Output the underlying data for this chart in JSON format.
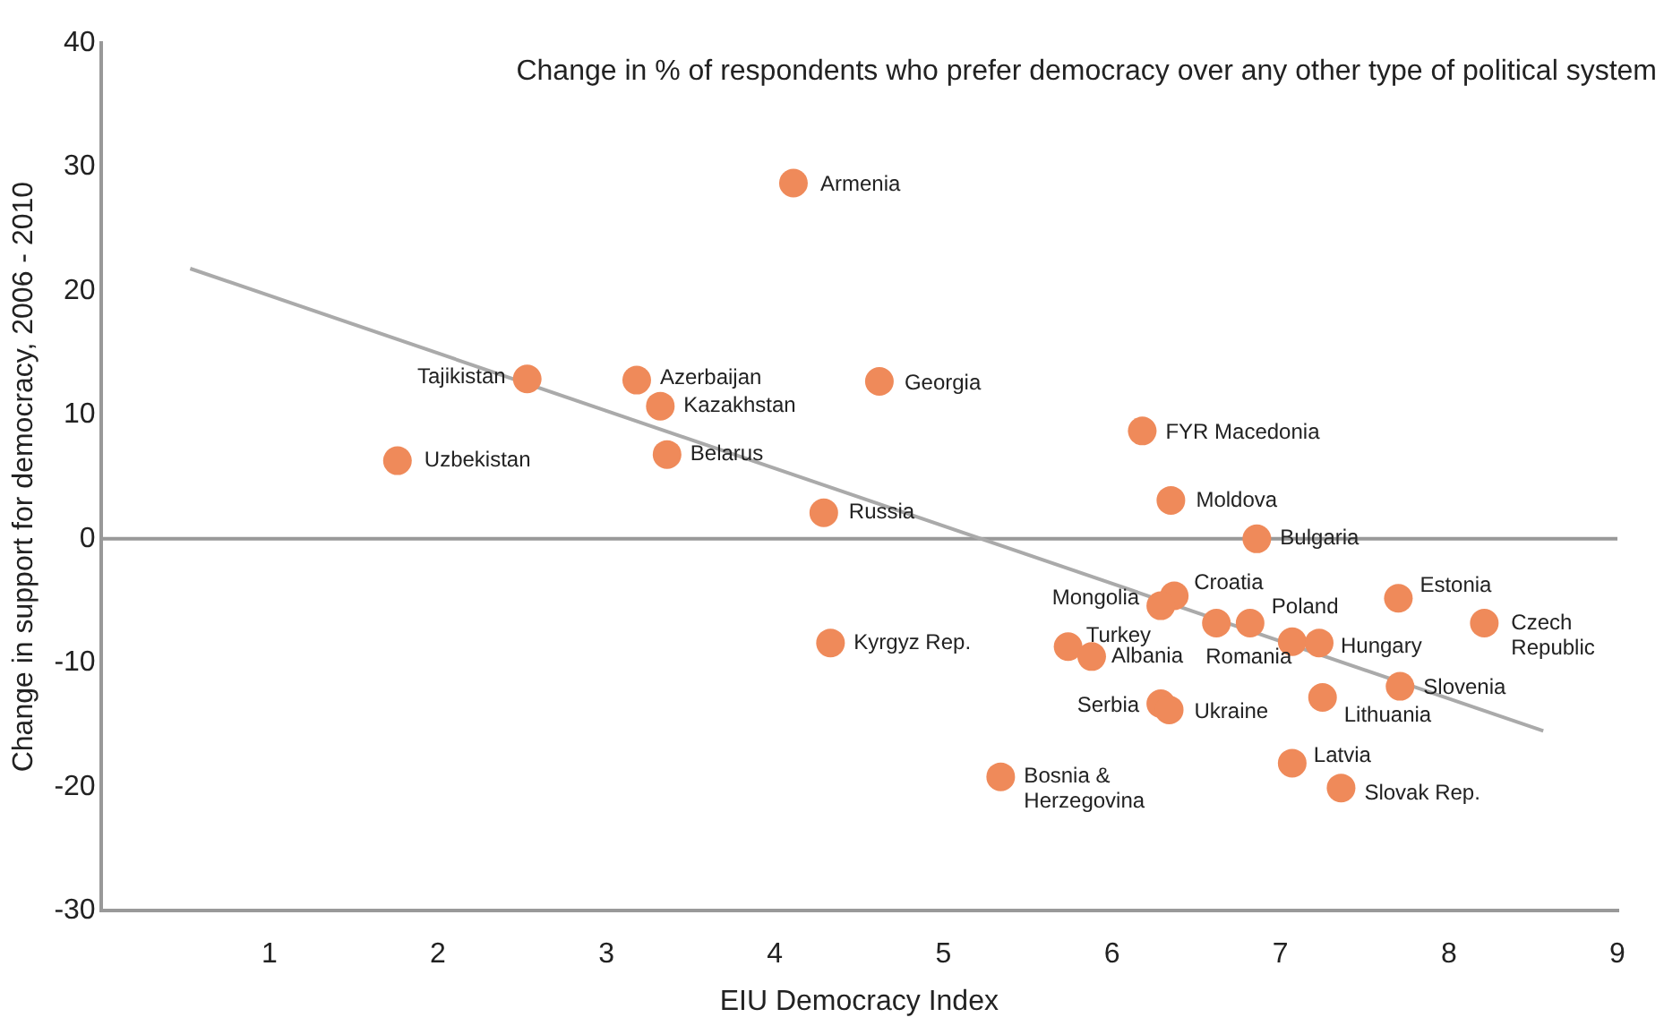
{
  "chart_data": {
    "type": "scatter",
    "title": "Change in % of respondents who prefer democracy over any other type of political system",
    "xlabel": "EIU Democracy Index",
    "ylabel": "Change in support for democracy, 2006 - 2010",
    "xlim": [
      0,
      9
    ],
    "xticks": [
      {
        "value": 0,
        "label": null
      },
      1,
      2,
      3,
      4,
      5,
      6,
      7,
      8,
      9
    ],
    "ylim": [
      -30,
      40
    ],
    "yticks": [
      -30,
      -20,
      -10,
      0,
      10,
      20,
      30,
      40
    ],
    "grid": false,
    "legend": false,
    "marker": "circle",
    "ref_lines": [
      {
        "axis": "y",
        "value": 0,
        "color": "#999999"
      }
    ],
    "series": [
      {
        "type": "scatter",
        "color": "#ef8a5a",
        "x": [
          4.11,
          2.53,
          3.18,
          3.32,
          4.62,
          1.76,
          3.36,
          4.29,
          6.18,
          6.35,
          6.86,
          6.37,
          6.29,
          7.7,
          8.21,
          6.82,
          6.62,
          7.07,
          7.23,
          5.74,
          5.88,
          4.33,
          7.71,
          7.25,
          6.29,
          6.34,
          7.07,
          7.36,
          5.34
        ],
        "values": [
          28.7,
          12.9,
          12.8,
          10.7,
          12.7,
          6.3,
          6.8,
          2.1,
          8.7,
          3.1,
          0,
          -4.6,
          -5.4,
          -4.8,
          -6.8,
          -6.8,
          -6.8,
          -8.3,
          -8.4,
          -8.7,
          -9.5,
          -8.4,
          -11.9,
          -12.8,
          -13.3,
          -13.8,
          -18.1,
          -20.1,
          -19.2
        ]
      },
      {
        "type": "line",
        "color": "#aaaaaa",
        "marker": "none",
        "x": [
          0.53,
          8.56
        ],
        "values": [
          21.8,
          -15.5
        ]
      }
    ],
    "annotations": [
      {
        "text": "Armenia",
        "x": 4.11,
        "y": 28.7
      },
      {
        "text": "Tajikistan",
        "x": 2.53,
        "y": 12.9
      },
      {
        "text": "Azerbaijan",
        "x": 3.18,
        "y": 12.8
      },
      {
        "text": "Kazakhstan",
        "x": 3.32,
        "y": 10.7
      },
      {
        "text": "Georgia",
        "x": 4.62,
        "y": 12.7
      },
      {
        "text": "Uzbekistan",
        "x": 1.76,
        "y": 6.3
      },
      {
        "text": "Belarus",
        "x": 3.36,
        "y": 6.8
      },
      {
        "text": "Russia",
        "x": 4.29,
        "y": 2.1
      },
      {
        "text": "FYR Macedonia",
        "x": 6.18,
        "y": 8.7
      },
      {
        "text": "Moldova",
        "x": 6.35,
        "y": 3.1
      },
      {
        "text": "Bulgaria",
        "x": 6.86,
        "y": 0
      },
      {
        "text": "Croatia",
        "x": 6.37,
        "y": -4.6
      },
      {
        "text": "Mongolia",
        "x": 6.29,
        "y": -5.4
      },
      {
        "text": "Estonia",
        "x": 7.7,
        "y": -4.8
      },
      {
        "text": "Czech\nRepublic",
        "x": 8.21,
        "y": -6.8
      },
      {
        "text": "Poland",
        "x": 6.82,
        "y": -6.8
      },
      {
        "text": "Romania",
        "x": 6.62,
        "y": -6.8
      },
      {
        "text": "Hungary",
        "x": 7.23,
        "y": -8.4
      },
      {
        "text": "Turkey",
        "x": 5.74,
        "y": -8.7
      },
      {
        "text": "Albania",
        "x": 5.88,
        "y": -9.5
      },
      {
        "text": "Kyrgyz Rep.",
        "x": 4.33,
        "y": -8.4
      },
      {
        "text": "Slovenia",
        "x": 7.71,
        "y": -11.9
      },
      {
        "text": "Lithuania",
        "x": 7.25,
        "y": -12.8
      },
      {
        "text": "Serbia",
        "x": 6.29,
        "y": -13.3
      },
      {
        "text": "Ukraine",
        "x": 6.34,
        "y": -13.8
      },
      {
        "text": "Latvia",
        "x": 7.07,
        "y": -18.1
      },
      {
        "text": "Slovak Rep.",
        "x": 7.36,
        "y": -20.1
      },
      {
        "text": "Bosnia &\nHerzegovina",
        "x": 5.34,
        "y": -19.2
      }
    ]
  }
}
